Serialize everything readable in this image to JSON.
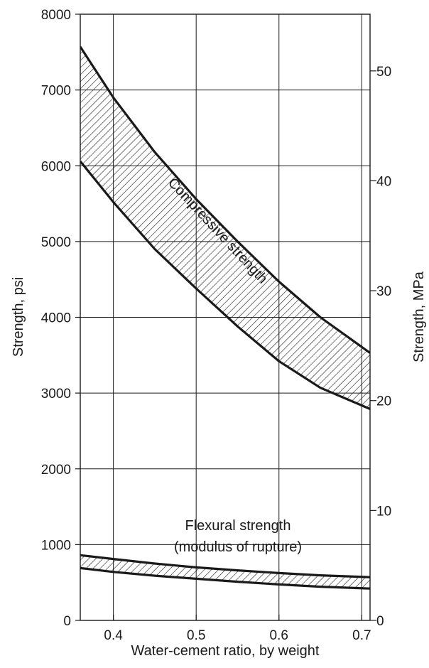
{
  "chart_data": {
    "type": "area",
    "title": "",
    "xlabel": "Water-cement ratio, by weight",
    "ylabel": "Strength, psi",
    "ylabel_right": "Strength, MPa",
    "xlim": [
      0.36,
      0.71
    ],
    "ylim": [
      0,
      8000
    ],
    "ylim_right_mpa": [
      0,
      55.16
    ],
    "grid": true,
    "x_ticks": [
      0.4,
      0.5,
      0.6,
      0.7
    ],
    "x_tick_labels": [
      "0.4",
      "0.5",
      "0.6",
      "0.7"
    ],
    "y_ticks": [
      0,
      1000,
      2000,
      3000,
      4000,
      5000,
      6000,
      7000,
      8000
    ],
    "y_tick_labels": [
      "0",
      "1000",
      "2000",
      "3000",
      "4000",
      "5000",
      "6000",
      "7000",
      "8000"
    ],
    "y2_ticks": [
      0,
      10,
      20,
      30,
      40,
      50
    ],
    "y2_tick_labels": [
      "0",
      "10",
      "20",
      "30",
      "40",
      "50"
    ],
    "x": [
      0.36,
      0.4,
      0.45,
      0.5,
      0.55,
      0.6,
      0.65,
      0.71
    ],
    "series": [
      {
        "name": "Compressive strength",
        "upper": [
          7570,
          6900,
          6180,
          5560,
          5000,
          4470,
          4000,
          3530
        ],
        "lower": [
          6060,
          5520,
          4900,
          4380,
          3880,
          3420,
          3070,
          2790
        ]
      },
      {
        "name": "Flexural strength (modulus of rupture)",
        "upper": [
          860,
          810,
          750,
          700,
          660,
          625,
          595,
          570
        ],
        "lower": [
          690,
          640,
          590,
          550,
          510,
          475,
          445,
          420
        ]
      }
    ],
    "annotations": {
      "compressive": "Compressive strength",
      "flexural_line1": "Flexural strength",
      "flexural_line2": "(modulus of rupture)"
    }
  }
}
